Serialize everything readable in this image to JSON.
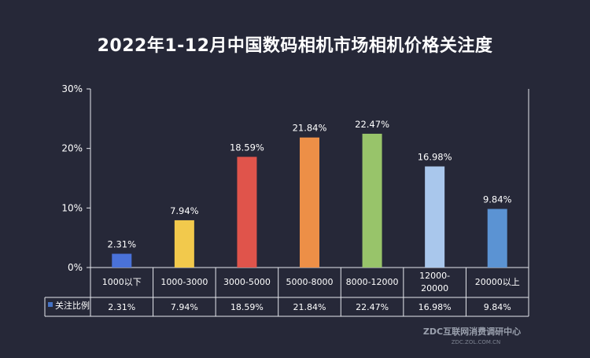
{
  "chart_data": {
    "type": "bar",
    "title": "2022年1-12月中国数码相机市场相机价格关注度",
    "categories": [
      "1000以下",
      "1000-3000",
      "3000-5000",
      "5000-8000",
      "8000-12000",
      "12000-20000",
      "20000以上"
    ],
    "category_lines": [
      [
        "1000以下"
      ],
      [
        "1000-3000"
      ],
      [
        "3000-5000"
      ],
      [
        "5000-8000"
      ],
      [
        "8000-12000"
      ],
      [
        "12000-",
        "20000"
      ],
      [
        "20000以上"
      ]
    ],
    "series": [
      {
        "name": "关注比例",
        "values": [
          2.31,
          7.94,
          18.59,
          21.84,
          22.47,
          16.98,
          9.84
        ],
        "labels": [
          "2.31%",
          "7.94%",
          "18.59%",
          "21.84%",
          "22.47%",
          "16.98%",
          "9.84%"
        ]
      }
    ],
    "colors": [
      "#4a72d9",
      "#f2c94c",
      "#e0544b",
      "#ed8f47",
      "#98c46a",
      "#a9c7ec",
      "#5b93d3"
    ],
    "legend_color": "#4472c4",
    "ylim": [
      0,
      30
    ],
    "yticks": [
      "0%",
      "10%",
      "20%",
      "30%"
    ],
    "xlabel": "",
    "ylabel": "",
    "grid": false,
    "legend": "data-table"
  },
  "watermark": {
    "text": "ZDC互联网消费调研中心",
    "url": "ZDC.ZOL.COM.CN"
  }
}
